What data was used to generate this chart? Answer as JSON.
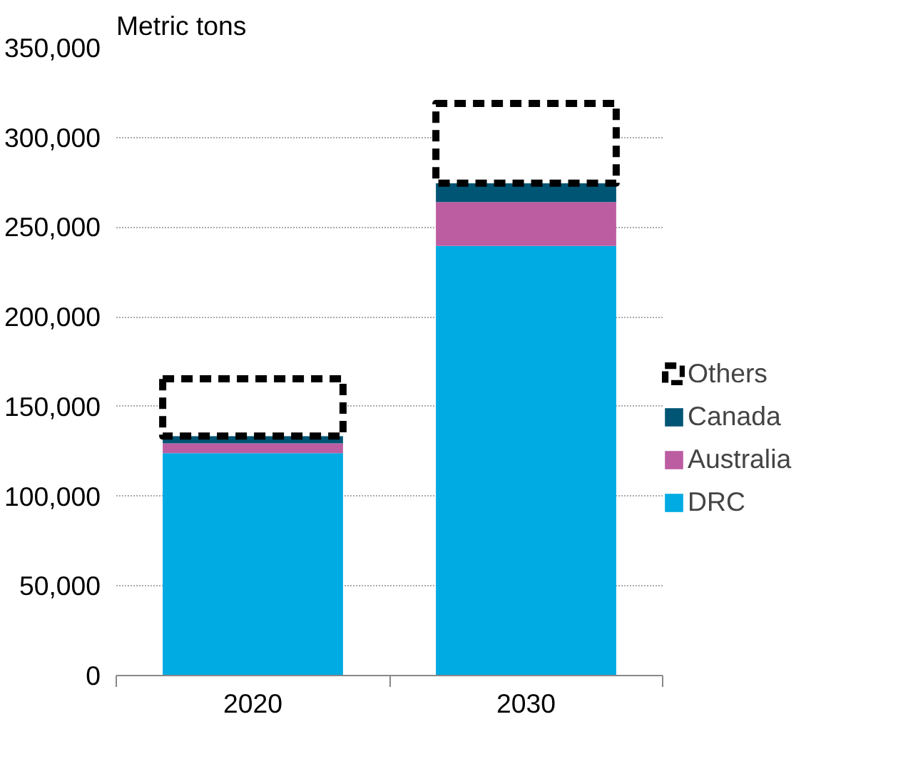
{
  "chart_data": {
    "type": "bar",
    "stacked": true,
    "ylabel": "Metric tons",
    "categories": [
      "2020",
      "2030"
    ],
    "series": [
      {
        "name": "DRC",
        "color": "#00aae2",
        "values": [
          124000,
          239500
        ]
      },
      {
        "name": "Australia",
        "color": "#bc5da2",
        "values": [
          5500,
          24500
        ]
      },
      {
        "name": "Canada",
        "color": "#005574",
        "values": [
          4000,
          10500
        ]
      },
      {
        "name": "Others",
        "color": "#000000",
        "line_style": "dashed",
        "values": [
          32000,
          44500
        ]
      }
    ],
    "ylim": [
      0,
      350000
    ],
    "yticks": [
      {
        "value": 0,
        "label": "0"
      },
      {
        "value": 50000,
        "label": "50,000"
      },
      {
        "value": 100000,
        "label": "100,000"
      },
      {
        "value": 150000,
        "label": "150,000"
      },
      {
        "value": 200000,
        "label": "200,000"
      },
      {
        "value": 250000,
        "label": "250,000"
      },
      {
        "value": 300000,
        "label": "300,000"
      },
      {
        "value": 350000,
        "label": "350,000"
      }
    ],
    "grid": "y",
    "legend": "right"
  }
}
